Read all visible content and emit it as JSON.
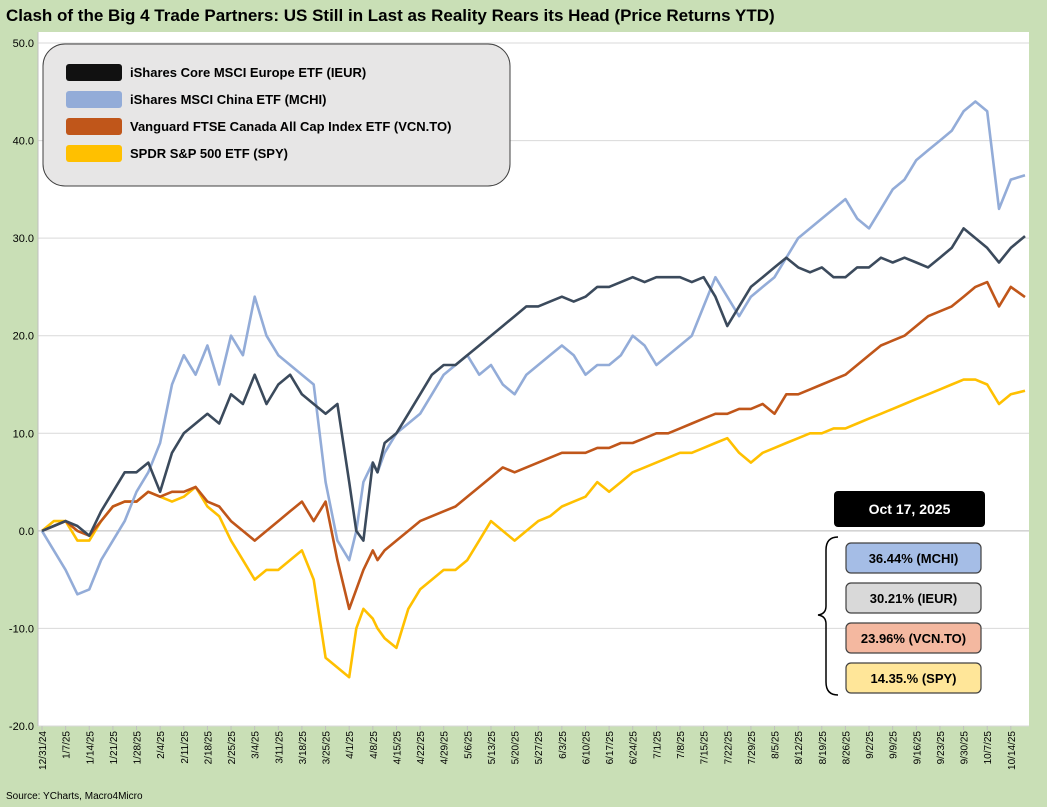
{
  "title": "Clash of the Big 4 Trade Partners: US Still in Last as Reality Rears its Head (Price Returns YTD)",
  "source": "Source: YCharts, Macro4Micro",
  "chart_data": {
    "type": "line",
    "title": "Clash of the Big 4 Trade Partners: US Still in Last as Reality Rears its Head (Price Returns YTD)",
    "ylim": [
      -20,
      50
    ],
    "y_ticks": [
      "50.0",
      "40.0",
      "30.0",
      "20.0",
      "10.0",
      "0.0",
      "-10.0",
      "-20.0"
    ],
    "x_tick_labels": [
      "12/31/24",
      "1/7/25",
      "1/14/25",
      "1/21/25",
      "1/28/25",
      "2/4/25",
      "2/11/25",
      "2/18/25",
      "2/25/25",
      "3/4/25",
      "3/11/25",
      "3/18/25",
      "3/25/25",
      "4/1/25",
      "4/8/25",
      "4/15/25",
      "4/22/25",
      "4/29/25",
      "5/6/25",
      "5/13/25",
      "5/20/25",
      "5/27/25",
      "6/3/25",
      "6/10/25",
      "6/17/25",
      "6/24/25",
      "7/1/25",
      "7/8/25",
      "7/15/25",
      "7/22/25",
      "7/29/25",
      "8/5/25",
      "8/12/25",
      "8/19/25",
      "8/26/25",
      "9/2/25",
      "9/9/25",
      "9/16/25",
      "9/23/25",
      "9/30/25",
      "10/7/25",
      "10/14/25"
    ],
    "x_end": 41.6,
    "grid": true,
    "legend_position": "top-left",
    "series": [
      {
        "name": "iShares Core MSCI Europe ETF (IEUR)",
        "color": "#3b4a5c",
        "x": [
          0,
          0.5,
          1,
          1.5,
          2,
          2.5,
          3,
          3.5,
          4,
          4.5,
          5,
          5.5,
          6,
          6.5,
          7,
          7.5,
          8,
          8.5,
          9,
          9.5,
          10,
          10.5,
          11,
          11.5,
          12,
          12.5,
          13,
          13.3,
          13.6,
          14,
          14.2,
          14.5,
          15,
          15.5,
          16,
          16.5,
          17,
          17.5,
          18,
          18.5,
          19,
          19.5,
          20,
          20.5,
          21,
          21.5,
          22,
          22.5,
          23,
          23.5,
          24,
          24.5,
          25,
          25.5,
          26,
          26.5,
          27,
          27.5,
          28,
          28.5,
          29,
          29.5,
          30,
          30.5,
          31,
          31.5,
          32,
          32.5,
          33,
          33.5,
          34,
          34.5,
          35,
          35.5,
          36,
          36.5,
          37,
          37.5,
          38,
          38.5,
          39,
          39.5,
          40,
          40.5,
          41,
          41.6
        ],
        "values": [
          0,
          0.5,
          1,
          0.5,
          -0.5,
          2,
          4,
          6,
          6,
          7,
          4,
          8,
          10,
          11,
          12,
          11,
          14,
          13,
          16,
          13,
          15,
          16,
          14,
          13,
          12,
          13,
          5,
          0,
          -1,
          7,
          6,
          9,
          10,
          12,
          14,
          16,
          17,
          17,
          18,
          19,
          20,
          21,
          22,
          23,
          23,
          23.5,
          24,
          23.5,
          24,
          25,
          25,
          25.5,
          26,
          25.5,
          26,
          26,
          26,
          25.5,
          26,
          24,
          21,
          23,
          25,
          26,
          27,
          28,
          27,
          26.5,
          27,
          26,
          26,
          27,
          27,
          28,
          27.5,
          28,
          27.5,
          27,
          28,
          29,
          31,
          30,
          29,
          27.5,
          29,
          30.21
        ]
      },
      {
        "name": "iShares MSCI China ETF (MCHI)",
        "color": "#93acd8",
        "x": [
          0,
          0.5,
          1,
          1.5,
          2,
          2.5,
          3,
          3.5,
          4,
          4.5,
          5,
          5.5,
          6,
          6.5,
          7,
          7.5,
          8,
          8.5,
          9,
          9.5,
          10,
          10.5,
          11,
          11.5,
          12,
          12.5,
          13,
          13.3,
          13.6,
          14,
          14.2,
          14.5,
          15,
          15.5,
          16,
          16.5,
          17,
          17.5,
          18,
          18.5,
          19,
          19.5,
          20,
          20.5,
          21,
          21.5,
          22,
          22.5,
          23,
          23.5,
          24,
          24.5,
          25,
          25.5,
          26,
          26.5,
          27,
          27.5,
          28,
          28.5,
          29,
          29.5,
          30,
          30.5,
          31,
          31.5,
          32,
          32.5,
          33,
          33.5,
          34,
          34.5,
          35,
          35.5,
          36,
          36.5,
          37,
          37.5,
          38,
          38.5,
          39,
          39.5,
          40,
          40.5,
          41,
          41.6
        ],
        "values": [
          0,
          -2,
          -4,
          -6.5,
          -6,
          -3,
          -1,
          1,
          4,
          6,
          9,
          15,
          18,
          16,
          19,
          15,
          20,
          18,
          24,
          20,
          18,
          17,
          16,
          15,
          5,
          -1,
          -3,
          0,
          5,
          7,
          6,
          8,
          10,
          11,
          12,
          14,
          16,
          17,
          18,
          16,
          17,
          15,
          14,
          16,
          17,
          18,
          19,
          18,
          16,
          17,
          17,
          18,
          20,
          19,
          17,
          18,
          19,
          20,
          23,
          26,
          24,
          22,
          24,
          25,
          26,
          28,
          30,
          31,
          32,
          33,
          34,
          32,
          31,
          33,
          35,
          36,
          38,
          39,
          40,
          41,
          43,
          44,
          43,
          33,
          36,
          36.44
        ]
      },
      {
        "name": "Vanguard FTSE Canada All Cap Index ETF (VCN.TO)",
        "color": "#c0561a",
        "x": [
          0,
          0.5,
          1,
          1.5,
          2,
          2.5,
          3,
          3.5,
          4,
          4.5,
          5,
          5.5,
          6,
          6.5,
          7,
          7.5,
          8,
          8.5,
          9,
          9.5,
          10,
          10.5,
          11,
          11.5,
          12,
          12.5,
          13,
          13.3,
          13.6,
          14,
          14.2,
          14.5,
          15,
          15.5,
          16,
          16.5,
          17,
          17.5,
          18,
          18.5,
          19,
          19.5,
          20,
          20.5,
          21,
          21.5,
          22,
          22.5,
          23,
          23.5,
          24,
          24.5,
          25,
          25.5,
          26,
          26.5,
          27,
          27.5,
          28,
          28.5,
          29,
          29.5,
          30,
          30.5,
          31,
          31.5,
          32,
          32.5,
          33,
          33.5,
          34,
          34.5,
          35,
          35.5,
          36,
          36.5,
          37,
          37.5,
          38,
          38.5,
          39,
          39.5,
          40,
          40.5,
          41,
          41.6
        ],
        "values": [
          0,
          0.5,
          1,
          0,
          -0.5,
          1,
          2.5,
          3,
          3,
          4,
          3.5,
          4,
          4,
          4.5,
          3,
          2.5,
          1,
          0,
          -1,
          0,
          1,
          2,
          3,
          1,
          3,
          -3,
          -8,
          -6,
          -4,
          -2,
          -3,
          -2,
          -1,
          0,
          1,
          1.5,
          2,
          2.5,
          3.5,
          4.5,
          5.5,
          6.5,
          6,
          6.5,
          7,
          7.5,
          8,
          8,
          8,
          8.5,
          8.5,
          9,
          9,
          9.5,
          10,
          10,
          10.5,
          11,
          11.5,
          12,
          12,
          12.5,
          12.5,
          13,
          12,
          14,
          14,
          14.5,
          15,
          15.5,
          16,
          17,
          18,
          19,
          19.5,
          20,
          21,
          22,
          22.5,
          23,
          24,
          25,
          25.5,
          23,
          25,
          23.96
        ]
      },
      {
        "name": "SPDR S&P 500 ETF (SPY)",
        "color": "#ffc000",
        "x": [
          0,
          0.5,
          1,
          1.5,
          2,
          2.5,
          3,
          3.5,
          4,
          4.5,
          5,
          5.5,
          6,
          6.5,
          7,
          7.5,
          8,
          8.5,
          9,
          9.5,
          10,
          10.5,
          11,
          11.5,
          12,
          12.5,
          13,
          13.3,
          13.6,
          14,
          14.2,
          14.5,
          15,
          15.5,
          16,
          16.5,
          17,
          17.5,
          18,
          18.5,
          19,
          19.5,
          20,
          20.5,
          21,
          21.5,
          22,
          22.5,
          23,
          23.5,
          24,
          24.5,
          25,
          25.5,
          26,
          26.5,
          27,
          27.5,
          28,
          28.5,
          29,
          29.5,
          30,
          30.5,
          31,
          31.5,
          32,
          32.5,
          33,
          33.5,
          34,
          34.5,
          35,
          35.5,
          36,
          36.5,
          37,
          37.5,
          38,
          38.5,
          39,
          39.5,
          40,
          40.5,
          41,
          41.6
        ],
        "values": [
          0,
          1,
          1,
          -1,
          -1,
          1,
          2.5,
          3,
          3,
          4,
          3.5,
          3,
          3.5,
          4.5,
          2.5,
          1.5,
          -1,
          -3,
          -5,
          -4,
          -4,
          -3,
          -2,
          -5,
          -13,
          -14,
          -15,
          -10,
          -8,
          -9,
          -10,
          -11,
          -12,
          -8,
          -6,
          -5,
          -4,
          -4,
          -3,
          -1,
          1,
          0,
          -1,
          0,
          1,
          1.5,
          2.5,
          3,
          3.5,
          5,
          4,
          5,
          6,
          6.5,
          7,
          7.5,
          8,
          8,
          8.5,
          9,
          9.5,
          8,
          7,
          8,
          8.5,
          9,
          9.5,
          10,
          10,
          10.5,
          10.5,
          11,
          11.5,
          12,
          12.5,
          13,
          13.5,
          14,
          14.5,
          15,
          15.5,
          15.5,
          15,
          13,
          14,
          14.35
        ]
      }
    ],
    "end_date_label": "Oct 17, 2025",
    "end_labels": [
      {
        "text": "36.44% (MCHI)",
        "fill": "#a5bde6"
      },
      {
        "text": "30.21% (IEUR)",
        "fill": "#d9d9d9"
      },
      {
        "text": "23.96% (VCN.TO)",
        "fill": "#f4b8a0"
      },
      {
        "text": "14.35.% (SPY)",
        "fill": "#ffe699"
      }
    ]
  }
}
